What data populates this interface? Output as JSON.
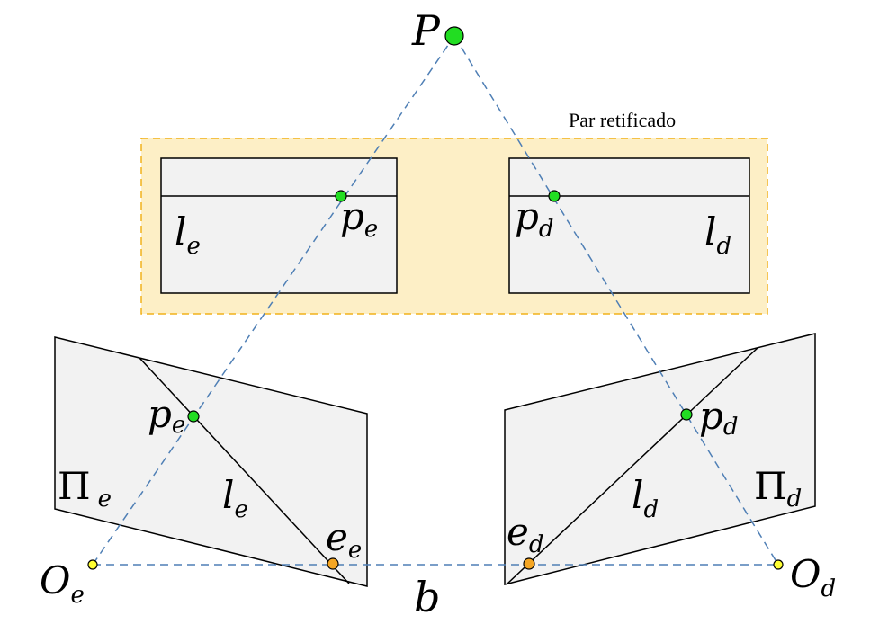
{
  "colors": {
    "plane_fill": "#f2f2f2",
    "rectified_fill": "#fdefc6",
    "rectified_border": "#f2b21c",
    "ray": "#4f7fb5",
    "point_green": "#22dd22",
    "point_orange": "#f5a623",
    "point_yellow": "#ffff33"
  },
  "labels": {
    "P": "P",
    "rectified_pair": "Par retificado",
    "rect_left_line": {
      "base": "l",
      "sub": "e"
    },
    "rect_left_point": {
      "base": "p",
      "sub": "e"
    },
    "rect_right_point": {
      "base": "p",
      "sub": "d"
    },
    "rect_right_line": {
      "base": "l",
      "sub": "d"
    },
    "left_plane_point": {
      "base": "p",
      "sub": "e"
    },
    "left_plane_name": {
      "base": "Π",
      "sub": "e"
    },
    "left_plane_line": {
      "base": "l",
      "sub": "e"
    },
    "left_epipole": {
      "base": "e",
      "sub": "e"
    },
    "right_plane_point": {
      "base": "p",
      "sub": "d"
    },
    "right_plane_name": {
      "base": "Π",
      "sub": "d"
    },
    "right_plane_line": {
      "base": "l",
      "sub": "d"
    },
    "right_epipole": {
      "base": "e",
      "sub": "d"
    },
    "left_center": {
      "base": "O",
      "sub": "e"
    },
    "right_center": {
      "base": "O",
      "sub": "d"
    },
    "baseline": "b"
  }
}
